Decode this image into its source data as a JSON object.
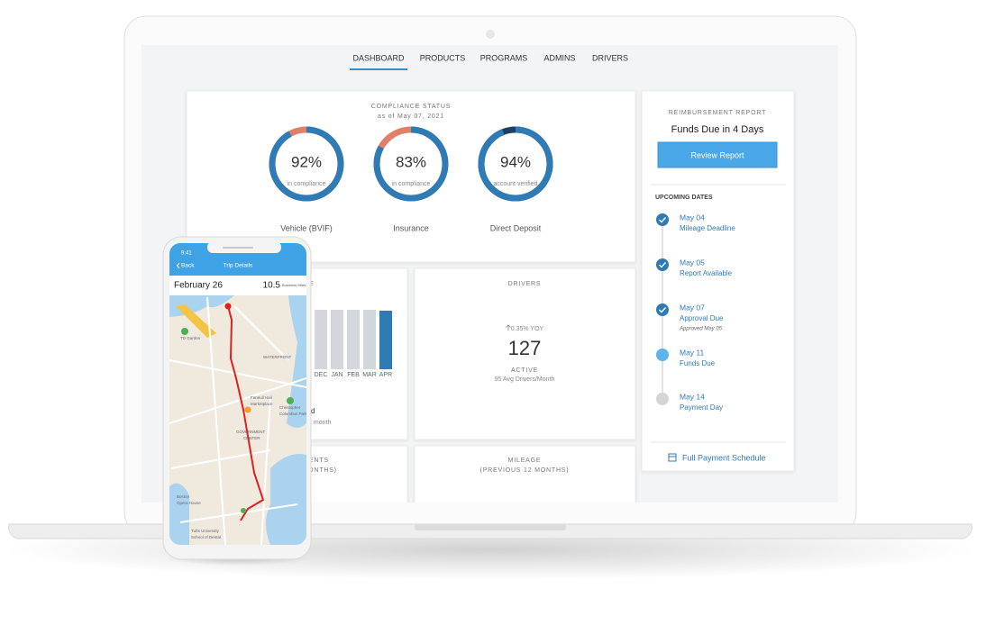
{
  "nav": {
    "items": [
      "DASHBOARD",
      "PRODUCTS",
      "PROGRAMS",
      "ADMINS",
      "DRIVERS"
    ]
  },
  "compliance": {
    "title": "COMPLIANCE STATUS",
    "date": "as of May 07, 2021",
    "gauges": [
      {
        "value": 92,
        "label": "92%",
        "caption": "in compliance",
        "name": "Vehicle (BVIF)",
        "color": "#2f7bb5",
        "rest_color": "#e07f6a"
      },
      {
        "value": 83,
        "label": "83%",
        "caption": "in compliance",
        "name": "Insurance",
        "color": "#2f7bb5",
        "rest_color": "#e07f6a"
      },
      {
        "value": 94,
        "label": "94%",
        "caption": "account verified",
        "name": "Direct Deposit",
        "color": "#2f7bb5",
        "rest_color": "#1d3f66"
      }
    ]
  },
  "reimbursement": {
    "title": "REIMBURSEMENT REPORT",
    "status": "Funds Due in 4 Days",
    "button": "Review Report",
    "upcoming_title": "UPCOMING DATES",
    "dates": [
      {
        "date": "May 04",
        "event": "Mileage Deadline"
      },
      {
        "date": "May 05",
        "event": "Report Available"
      },
      {
        "date": "May 07",
        "event": "Approval Due",
        "note": "Approved May 05"
      },
      {
        "date": "May 11",
        "event": "Funds Due"
      },
      {
        "date": "May 14",
        "event": "Payment Day"
      }
    ],
    "link": "Full Payment Schedule"
  },
  "monthly_card": {
    "title_fragment": "E",
    "months": [
      "DEC",
      "JAN",
      "FEB",
      "MAR",
      "APR"
    ],
    "fragments": [
      "d",
      "t month"
    ]
  },
  "drivers": {
    "title": "DRIVERS",
    "change": "0.35% YOY",
    "count": 127,
    "status": "ACTIVE",
    "average": "95 Avg Drivers/Month"
  },
  "payments_card": {
    "title_fragment": "ENTS",
    "subtitle_fragment": "ONTHS)"
  },
  "mileage": {
    "title": "MILEAGE",
    "subtitle": "(PREVIOUS 12 MONTHS)"
  },
  "phone": {
    "time": "9:41",
    "back": "Back",
    "title": "Trip Details",
    "date": "February 26",
    "miles": "10.5",
    "miles_unit": "Business Miles",
    "map_labels": [
      "TD Garden",
      "WATERFRONT",
      "Faneuil Hall",
      "Marketplace",
      "GOVERNMENT",
      "CENTER",
      "Christopher",
      "Columbus Park",
      "Boston",
      "Opera House",
      "Tufts University",
      "School of Dental"
    ]
  }
}
